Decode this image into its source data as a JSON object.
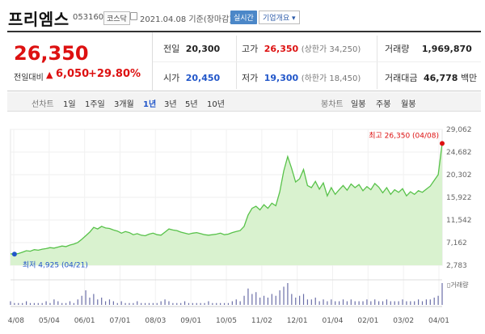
{
  "header": {
    "name": "프리엠스",
    "code": "053160",
    "market": "코스닥",
    "date": "2021.04.08 기준(장마감)",
    "realtime": "실시간",
    "overview": "기업개요 ▾"
  },
  "summary": {
    "price": "26,350",
    "change_label": "전일대비",
    "change_arrow": "▲",
    "change_value": "6,050",
    "change_pct": "+29.80%",
    "prev_label": "전일",
    "prev": "20,300",
    "high_label": "고가",
    "high": "26,350",
    "high_sub": "(상한가 34,250)",
    "volume_label": "거래량",
    "volume": "1,969,870",
    "open_label": "시가",
    "open": "20,450",
    "low_label": "저가",
    "low": "19,300",
    "low_sub": "(하한가 18,450)",
    "amount_label": "거래대금",
    "amount": "46,778",
    "amount_unit": "백만"
  },
  "tabs": {
    "line_label": "선차트",
    "periods": [
      "1일",
      "1주일",
      "3개월",
      "1년",
      "3년",
      "5년",
      "10년"
    ],
    "active_period": "1년",
    "candle_label": "봉차트",
    "candles": [
      "일봉",
      "주봉",
      "월봉"
    ]
  },
  "chart_data": {
    "type": "area",
    "y_ticks": [
      "29,062",
      "24,682",
      "20,302",
      "15,922",
      "11,542",
      "7,162",
      "2,783"
    ],
    "ylim": [
      2783,
      29062
    ],
    "x_ticks": [
      "04/08",
      "05/04",
      "06/01",
      "07/01",
      "08/03",
      "09/01",
      "10/05",
      "11/02",
      "12/01",
      "01/04",
      "02/01",
      "03/02",
      "04/01"
    ],
    "values": [
      5000,
      4925,
      5050,
      5300,
      5600,
      5500,
      5800,
      5700,
      5900,
      6000,
      6200,
      6100,
      6300,
      6500,
      6400,
      6700,
      6900,
      7200,
      7800,
      8500,
      9200,
      10100,
      9800,
      10300,
      10000,
      9900,
      9600,
      9400,
      9000,
      9300,
      9100,
      8700,
      8900,
      8600,
      8500,
      8800,
      9000,
      8700,
      8600,
      9200,
      9800,
      9600,
      9500,
      9200,
      9000,
      8800,
      9000,
      9100,
      8900,
      8700,
      8600,
      8700,
      8800,
      9000,
      8700,
      8800,
      9100,
      9300,
      9500,
      10300,
      12500,
      13800,
      14200,
      13500,
      14500,
      13800,
      14800,
      14300,
      17000,
      21000,
      23800,
      21500,
      18900,
      19500,
      21300,
      18200,
      17800,
      19000,
      17500,
      18700,
      16200,
      17800,
      16500,
      17400,
      18200,
      17300,
      18500,
      17800,
      18400,
      17200,
      18000,
      17400,
      18600,
      17900,
      16800,
      17800,
      16500,
      17400,
      16900,
      17600,
      16200,
      17000,
      16500,
      17200,
      16900,
      17500,
      18100,
      19200,
      20300,
      26350
    ],
    "high_label": "최고 26,350 (04/08)",
    "low_label": "최저 4,925 (04/21)",
    "volume_label": "거래량",
    "volume": [
      2,
      1,
      1,
      1,
      2,
      1,
      1,
      1,
      1,
      2,
      1,
      3,
      2,
      1,
      1,
      2,
      1,
      3,
      5,
      8,
      4,
      6,
      3,
      4,
      2,
      3,
      2,
      1,
      2,
      1,
      1,
      1,
      2,
      1,
      1,
      1,
      1,
      1,
      2,
      3,
      2,
      1,
      1,
      1,
      2,
      1,
      1,
      1,
      1,
      1,
      2,
      1,
      1,
      1,
      1,
      1,
      2,
      3,
      2,
      5,
      9,
      6,
      7,
      4,
      5,
      4,
      6,
      5,
      8,
      10,
      12,
      6,
      4,
      5,
      6,
      3,
      3,
      4,
      2,
      3,
      2,
      3,
      2,
      2,
      3,
      2,
      3,
      2,
      2,
      2,
      3,
      2,
      3,
      2,
      2,
      3,
      2,
      2,
      2,
      3,
      2,
      2,
      2,
      3,
      2,
      3,
      3,
      4,
      5,
      12
    ]
  },
  "colors": {
    "up": "#dd1111",
    "down": "#2156c9",
    "line": "#58c24a",
    "fill": "#d9f2cf"
  }
}
